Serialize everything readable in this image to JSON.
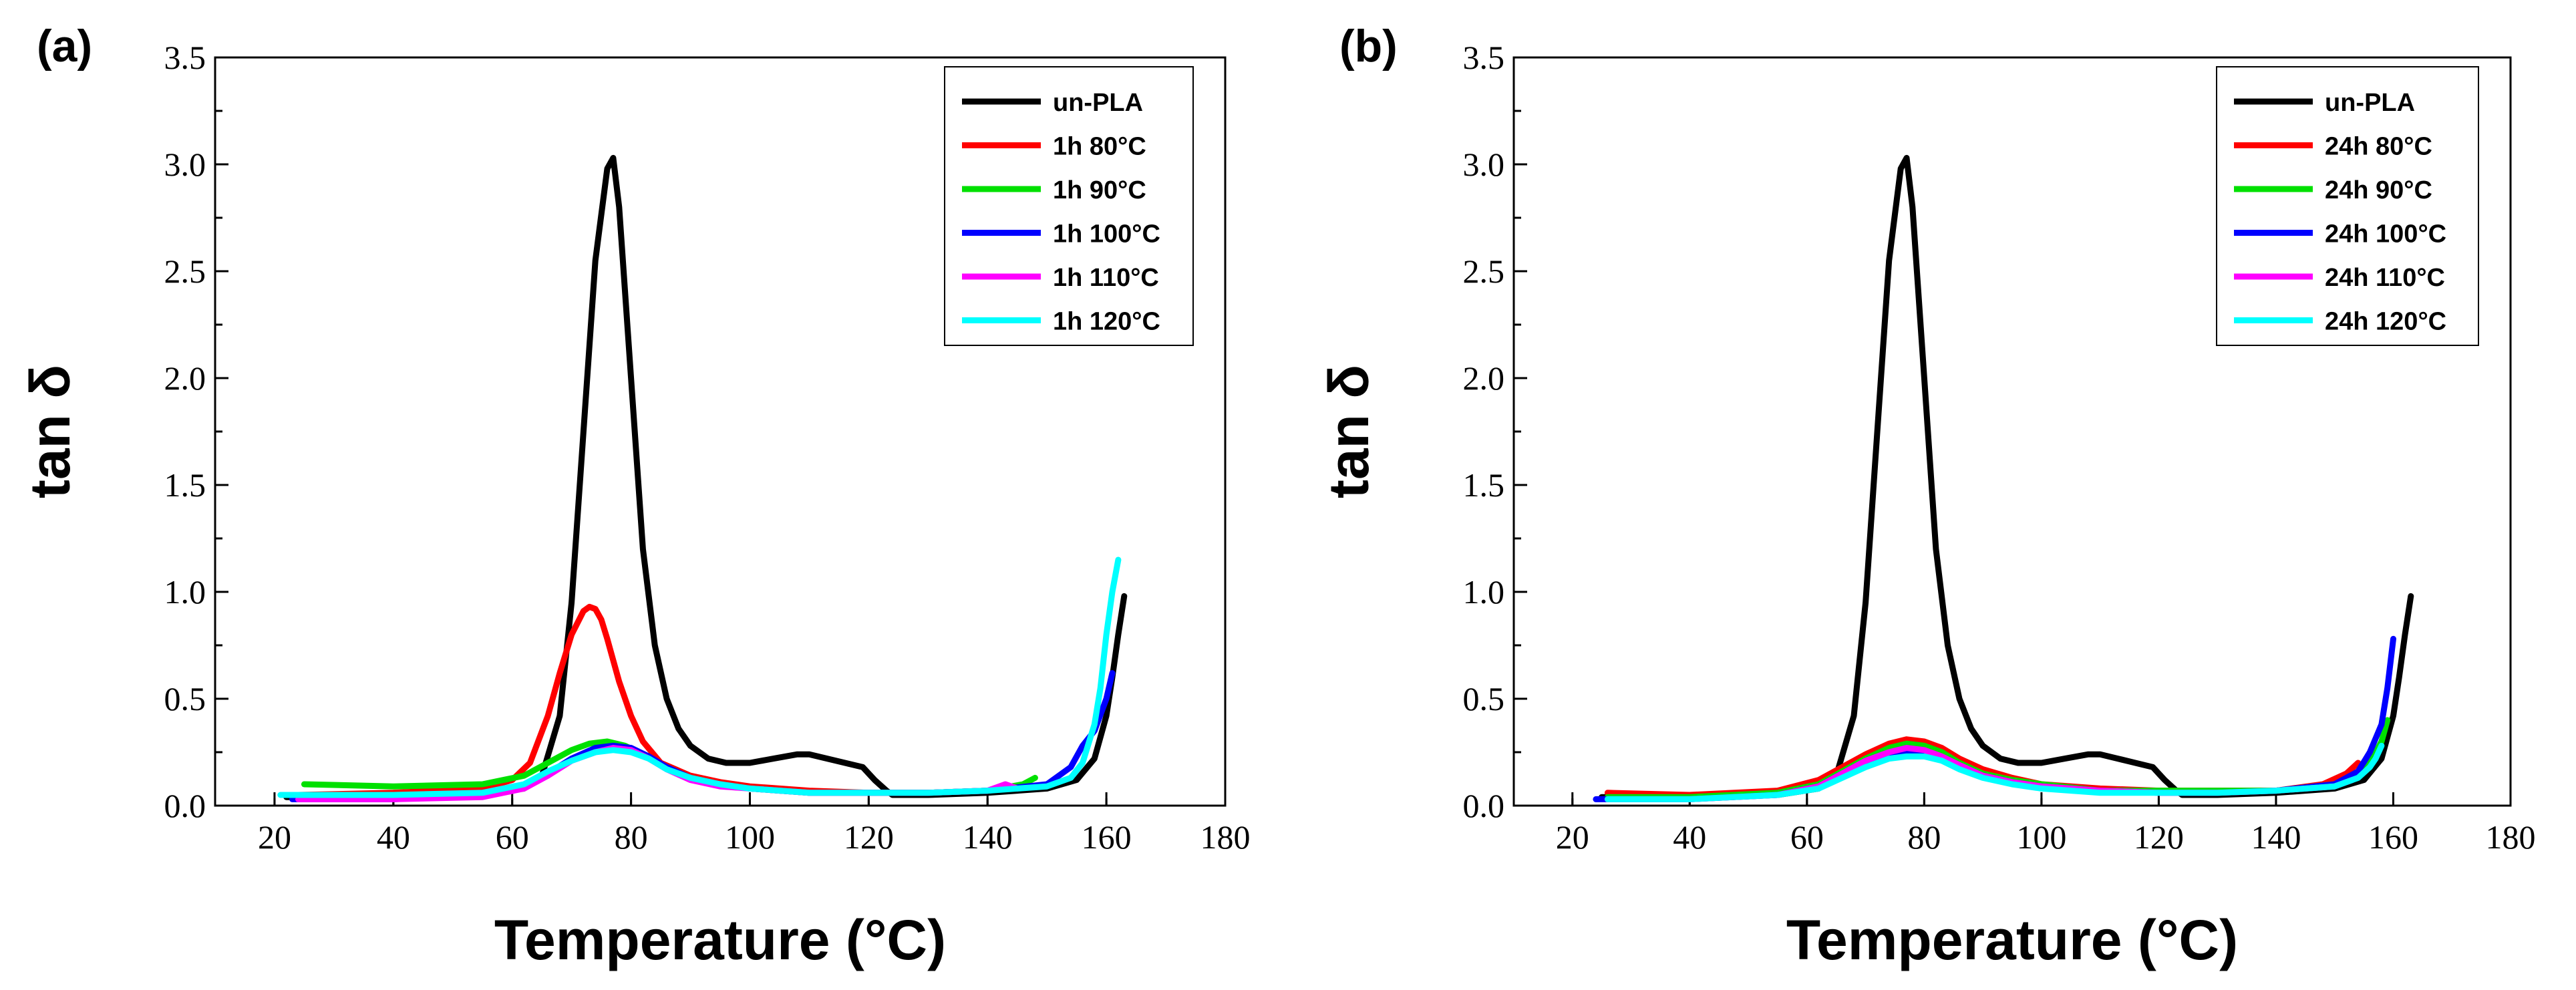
{
  "chart_data": [
    {
      "type": "line",
      "panel_label": "(a)",
      "xlabel": "Temperature (°C)",
      "ylabel": "tan δ",
      "xlim": [
        10,
        180
      ],
      "ylim": [
        0,
        3.5
      ],
      "xticks": [
        20,
        40,
        60,
        80,
        100,
        120,
        140,
        160,
        180
      ],
      "xtick_labels": [
        "20",
        "40",
        "60",
        "80",
        "100",
        "120",
        "140",
        "160",
        "180"
      ],
      "yticks": [
        0,
        0.5,
        1.0,
        1.5,
        2.0,
        2.5,
        3.0,
        3.5
      ],
      "ytick_labels": [
        "0.0",
        "0.5",
        "1.0",
        "1.5",
        "2.0",
        "2.5",
        "3.0",
        "3.5"
      ],
      "legend_position": "top-right",
      "series": [
        {
          "name": "un-PLA",
          "color": "#000000",
          "x": [
            22,
            40,
            55,
            62,
            65,
            68,
            70,
            72,
            74,
            76,
            77,
            78,
            80,
            82,
            84,
            86,
            88,
            90,
            93,
            96,
            100,
            104,
            108,
            110,
            113,
            116,
            119,
            121,
            123,
            124,
            126,
            130,
            140,
            150,
            155,
            158,
            160,
            161,
            162,
            163
          ],
          "y": [
            0.04,
            0.04,
            0.05,
            0.08,
            0.14,
            0.42,
            0.95,
            1.75,
            2.55,
            2.98,
            3.03,
            2.8,
            2.0,
            1.2,
            0.75,
            0.5,
            0.36,
            0.28,
            0.22,
            0.2,
            0.2,
            0.22,
            0.24,
            0.24,
            0.22,
            0.2,
            0.18,
            0.12,
            0.07,
            0.05,
            0.05,
            0.05,
            0.06,
            0.08,
            0.12,
            0.22,
            0.42,
            0.6,
            0.8,
            0.98
          ]
        },
        {
          "name": "1h 80°C",
          "color": "#ff0000",
          "x": [
            24,
            40,
            55,
            60,
            63,
            66,
            68,
            70,
            72,
            73,
            74,
            75,
            76,
            78,
            80,
            82,
            85,
            90,
            95,
            100,
            110,
            120,
            130,
            140,
            147
          ],
          "y": [
            0.05,
            0.06,
            0.08,
            0.12,
            0.2,
            0.42,
            0.62,
            0.8,
            0.91,
            0.93,
            0.92,
            0.87,
            0.78,
            0.58,
            0.42,
            0.3,
            0.2,
            0.14,
            0.11,
            0.09,
            0.07,
            0.06,
            0.06,
            0.07,
            0.09
          ]
        },
        {
          "name": "1h 90°C",
          "color": "#00e000",
          "x": [
            25,
            40,
            55,
            62,
            66,
            70,
            73,
            76,
            79,
            82,
            86,
            90,
            95,
            100,
            110,
            120,
            130,
            140,
            146,
            148
          ],
          "y": [
            0.1,
            0.09,
            0.1,
            0.14,
            0.2,
            0.26,
            0.29,
            0.3,
            0.28,
            0.24,
            0.18,
            0.13,
            0.1,
            0.08,
            0.06,
            0.06,
            0.06,
            0.07,
            0.1,
            0.13
          ]
        },
        {
          "name": "1h 100°C",
          "color": "#0000ff",
          "x": [
            23,
            40,
            55,
            62,
            66,
            70,
            74,
            77,
            80,
            83,
            86,
            90,
            95,
            100,
            110,
            120,
            130,
            140,
            150,
            154,
            156,
            158,
            160,
            161
          ],
          "y": [
            0.03,
            0.03,
            0.05,
            0.09,
            0.15,
            0.22,
            0.27,
            0.28,
            0.27,
            0.23,
            0.18,
            0.13,
            0.1,
            0.08,
            0.06,
            0.06,
            0.06,
            0.07,
            0.1,
            0.18,
            0.28,
            0.35,
            0.5,
            0.62
          ]
        },
        {
          "name": "1h 110°C",
          "color": "#ff00ff",
          "x": [
            24,
            40,
            55,
            62,
            66,
            70,
            74,
            77,
            80,
            83,
            86,
            90,
            95,
            100,
            110,
            120,
            130,
            140,
            143,
            145
          ],
          "y": [
            0.03,
            0.03,
            0.04,
            0.08,
            0.14,
            0.21,
            0.25,
            0.27,
            0.26,
            0.22,
            0.17,
            0.12,
            0.09,
            0.08,
            0.06,
            0.06,
            0.06,
            0.07,
            0.1,
            0.08
          ]
        },
        {
          "name": "1h 120°C",
          "color": "#00ffff",
          "x": [
            21,
            40,
            55,
            62,
            66,
            70,
            74,
            77,
            80,
            83,
            86,
            90,
            95,
            100,
            110,
            120,
            130,
            140,
            150,
            154,
            156,
            158,
            159,
            160,
            161,
            162
          ],
          "y": [
            0.05,
            0.05,
            0.06,
            0.1,
            0.16,
            0.21,
            0.25,
            0.26,
            0.25,
            0.22,
            0.17,
            0.13,
            0.1,
            0.08,
            0.06,
            0.06,
            0.06,
            0.07,
            0.09,
            0.13,
            0.2,
            0.38,
            0.55,
            0.8,
            1.0,
            1.15
          ]
        }
      ]
    },
    {
      "type": "line",
      "panel_label": "(b)",
      "xlabel": "Temperature (°C)",
      "ylabel": "tan δ",
      "xlim": [
        10,
        180
      ],
      "ylim": [
        0,
        3.5
      ],
      "xticks": [
        20,
        40,
        60,
        80,
        100,
        120,
        140,
        160,
        180
      ],
      "xtick_labels": [
        "20",
        "40",
        "60",
        "80",
        "100",
        "120",
        "140",
        "160",
        "180"
      ],
      "yticks": [
        0,
        0.5,
        1.0,
        1.5,
        2.0,
        2.5,
        3.0,
        3.5
      ],
      "ytick_labels": [
        "0.0",
        "0.5",
        "1.0",
        "1.5",
        "2.0",
        "2.5",
        "3.0",
        "3.5"
      ],
      "legend_position": "top-right",
      "series": [
        {
          "name": "un-PLA",
          "color": "#000000",
          "x": [
            25,
            40,
            55,
            62,
            65,
            68,
            70,
            72,
            74,
            76,
            77,
            78,
            80,
            82,
            84,
            86,
            88,
            90,
            93,
            96,
            100,
            104,
            108,
            110,
            113,
            116,
            119,
            121,
            123,
            124,
            126,
            130,
            140,
            150,
            155,
            158,
            160,
            161,
            162,
            163
          ],
          "y": [
            0.04,
            0.04,
            0.05,
            0.08,
            0.14,
            0.42,
            0.95,
            1.75,
            2.55,
            2.98,
            3.03,
            2.8,
            2.0,
            1.2,
            0.75,
            0.5,
            0.36,
            0.28,
            0.22,
            0.2,
            0.2,
            0.22,
            0.24,
            0.24,
            0.22,
            0.2,
            0.18,
            0.12,
            0.07,
            0.05,
            0.05,
            0.05,
            0.06,
            0.08,
            0.12,
            0.22,
            0.42,
            0.6,
            0.8,
            0.98
          ]
        },
        {
          "name": "24h 80°C",
          "color": "#ff0000",
          "x": [
            26,
            40,
            55,
            62,
            66,
            70,
            74,
            77,
            80,
            83,
            86,
            90,
            95,
            100,
            110,
            120,
            130,
            140,
            148,
            152,
            154
          ],
          "y": [
            0.06,
            0.05,
            0.07,
            0.12,
            0.18,
            0.24,
            0.29,
            0.31,
            0.3,
            0.27,
            0.22,
            0.17,
            0.13,
            0.1,
            0.08,
            0.07,
            0.07,
            0.07,
            0.1,
            0.15,
            0.2
          ]
        },
        {
          "name": "24h 90°C",
          "color": "#00e000",
          "x": [
            26,
            40,
            55,
            62,
            66,
            70,
            74,
            77,
            80,
            83,
            86,
            90,
            95,
            100,
            110,
            120,
            130,
            140,
            150,
            154,
            156,
            158,
            159
          ],
          "y": [
            0.04,
            0.04,
            0.06,
            0.1,
            0.16,
            0.22,
            0.27,
            0.29,
            0.28,
            0.25,
            0.2,
            0.15,
            0.12,
            0.1,
            0.07,
            0.07,
            0.07,
            0.07,
            0.1,
            0.14,
            0.2,
            0.3,
            0.4
          ]
        },
        {
          "name": "24h 100°C",
          "color": "#0000ff",
          "x": [
            24,
            40,
            55,
            62,
            66,
            70,
            74,
            77,
            80,
            83,
            86,
            90,
            95,
            100,
            110,
            120,
            130,
            140,
            150,
            154,
            156,
            158,
            159,
            160
          ],
          "y": [
            0.03,
            0.03,
            0.05,
            0.09,
            0.15,
            0.2,
            0.24,
            0.25,
            0.24,
            0.22,
            0.18,
            0.14,
            0.11,
            0.09,
            0.07,
            0.06,
            0.06,
            0.07,
            0.1,
            0.16,
            0.25,
            0.38,
            0.55,
            0.78
          ]
        },
        {
          "name": "24h 110°C",
          "color": "#ff00ff",
          "x": [
            26,
            40,
            55,
            62,
            66,
            70,
            74,
            77,
            80,
            83,
            86,
            90,
            95,
            100,
            110,
            120,
            130,
            140,
            150,
            153
          ],
          "y": [
            0.03,
            0.03,
            0.05,
            0.09,
            0.15,
            0.21,
            0.25,
            0.27,
            0.26,
            0.23,
            0.19,
            0.14,
            0.11,
            0.09,
            0.07,
            0.06,
            0.06,
            0.07,
            0.09,
            0.12
          ]
        },
        {
          "name": "24h 120°C",
          "color": "#00ffff",
          "x": [
            26,
            40,
            55,
            62,
            66,
            70,
            74,
            77,
            80,
            83,
            86,
            90,
            95,
            100,
            110,
            120,
            130,
            140,
            150,
            154,
            156,
            157,
            158
          ],
          "y": [
            0.03,
            0.03,
            0.05,
            0.08,
            0.13,
            0.18,
            0.22,
            0.23,
            0.23,
            0.21,
            0.17,
            0.13,
            0.1,
            0.08,
            0.06,
            0.06,
            0.06,
            0.07,
            0.09,
            0.13,
            0.18,
            0.22,
            0.28
          ]
        }
      ]
    }
  ]
}
